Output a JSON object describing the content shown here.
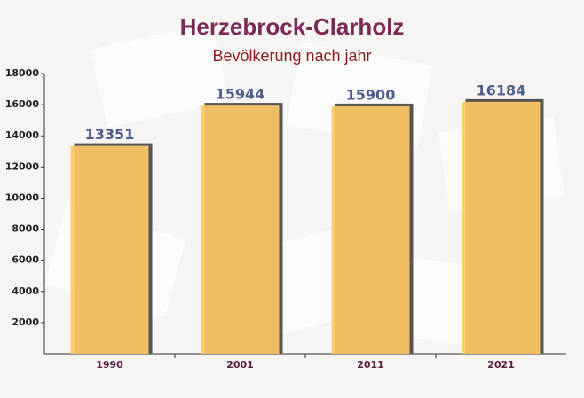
{
  "chart_data": {
    "type": "bar",
    "title": "Herzebrock-Clarholz",
    "subtitle": "Bevölkerung nach jahr",
    "categories": [
      "1990",
      "2001",
      "2011",
      "2021"
    ],
    "values": [
      13351,
      15944,
      15900,
      16184
    ],
    "color": "#ffc966",
    "ylim": [
      0,
      18000
    ],
    "yticks": [
      2000,
      4000,
      6000,
      8000,
      10000,
      12000,
      14000,
      16000,
      18000
    ]
  }
}
